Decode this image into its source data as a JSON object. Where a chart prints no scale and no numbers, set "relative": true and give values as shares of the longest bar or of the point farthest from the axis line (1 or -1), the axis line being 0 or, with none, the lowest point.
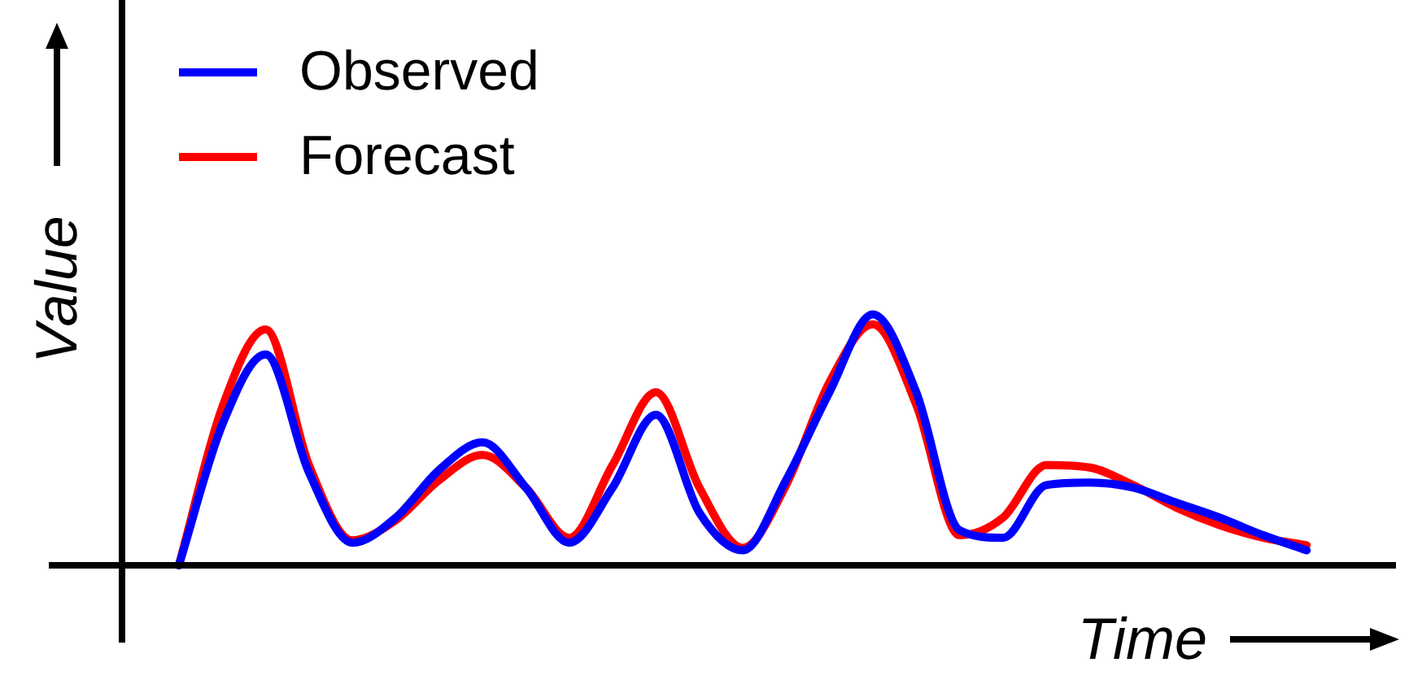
{
  "chart_data": {
    "type": "line",
    "relative": true,
    "xlabel": "Time",
    "ylabel": "Value",
    "legend": "top left",
    "marker": "none",
    "line_style": "solid",
    "categories": [
      null,
      null,
      null,
      null,
      null,
      null,
      null,
      null,
      null,
      null,
      null,
      null,
      null,
      null,
      null,
      null,
      null,
      null,
      null,
      null,
      null,
      null,
      null,
      null,
      null,
      null,
      null
    ],
    "series": [
      {
        "name": "Observed",
        "color": "#0000ff",
        "values": [
          0,
          0.56,
          0.84,
          0.37,
          0.09,
          0.19,
          0.38,
          0.49,
          0.31,
          0.09,
          0.31,
          0.6,
          0.21,
          0.06,
          0.34,
          0.69,
          1,
          0.69,
          0.14,
          0.11,
          0.32,
          0.33,
          0.31,
          0.25,
          0.19,
          0.12,
          0.06
        ]
      },
      {
        "name": "Forecast",
        "color": "#ff0000",
        "values": [
          0,
          0.63,
          0.94,
          0.4,
          0.1,
          0.18,
          0.34,
          0.44,
          0.31,
          0.11,
          0.4,
          0.69,
          0.31,
          0.07,
          0.32,
          0.73,
          0.96,
          0.64,
          0.12,
          0.19,
          0.4,
          0.39,
          0.32,
          0.23,
          0.16,
          0.11,
          0.08
        ]
      }
    ]
  }
}
